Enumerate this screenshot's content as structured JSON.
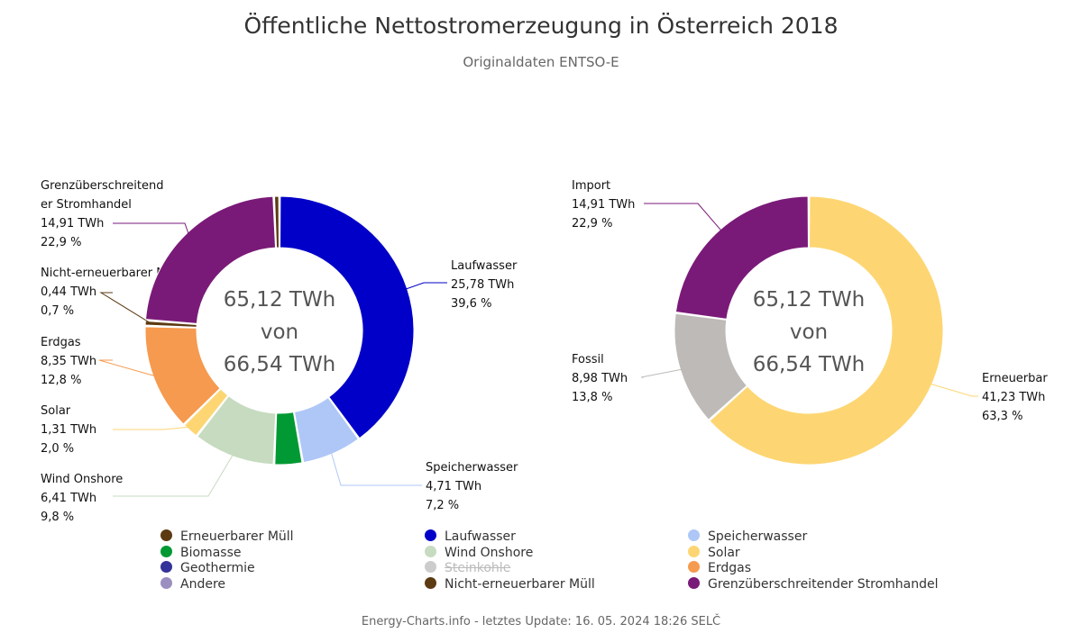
{
  "title": "Öffentliche Nettostromerzeugung in Österreich 2018",
  "subtitle": "Originaldaten ENTSO-E",
  "footer": "Energy-Charts.info - letztes Update: 16. 05. 2024 18:26 SELČ",
  "chart_data": [
    {
      "type": "pie",
      "title": "",
      "center_text": [
        "65,12 TWh",
        "von",
        "66,54 TWh"
      ],
      "unit": "TWh",
      "slices": [
        {
          "name": "Laufwasser",
          "value": 25.78,
          "percent": 39.6,
          "color": "#0000c8",
          "label_lines": [
            "Laufwasser",
            "25,78 TWh",
            "39,6 %"
          ]
        },
        {
          "name": "Speicherwasser",
          "value": 4.71,
          "percent": 7.2,
          "color": "#aec7f7",
          "label_lines": [
            "Speicherwasser",
            "4,71 TWh",
            "7,2 %"
          ]
        },
        {
          "name": "Biomasse",
          "value": 2.21,
          "percent": 3.4,
          "color": "#009933",
          "label_lines": []
        },
        {
          "name": "Wind Onshore",
          "value": 6.41,
          "percent": 9.8,
          "color": "#c6dbbf",
          "label_lines": [
            "Wind Onshore",
            "6,41 TWh",
            "9,8 %"
          ]
        },
        {
          "name": "Solar",
          "value": 1.31,
          "percent": 2.0,
          "color": "#fdd673",
          "label_lines": [
            "Solar",
            "1,31 TWh",
            "2,0 %"
          ]
        },
        {
          "name": "Erdgas",
          "value": 8.35,
          "percent": 12.8,
          "color": "#f59a4f",
          "label_lines": [
            "Erdgas",
            "8,35 TWh",
            "12,8 %"
          ]
        },
        {
          "name": "Nicht-erneuerbarer Müll",
          "value": 0.44,
          "percent": 0.7,
          "color": "#5c3a12",
          "label_lines": [
            "Nicht-erneuerbarer Müll",
            "0,44 TWh",
            "0,7 %"
          ]
        },
        {
          "name": "Grenzüberschreitender Stromhandel",
          "value": 14.91,
          "percent": 22.9,
          "color": "#7a1a78",
          "label_lines": [
            "Grenzüberschreitend",
            "er Stromhandel",
            "14,91 TWh",
            "22,9 %"
          ]
        },
        {
          "name": "Erneuerbarer Müll",
          "value": 0.44,
          "percent": 0.7,
          "color": "#5c3a12",
          "label_lines": []
        }
      ]
    },
    {
      "type": "pie",
      "title": "",
      "center_text": [
        "65,12 TWh",
        "von",
        "66,54 TWh"
      ],
      "unit": "TWh",
      "slices": [
        {
          "name": "Erneuerbar",
          "value": 41.23,
          "percent": 63.3,
          "color": "#fdd673",
          "label_lines": [
            "Erneuerbar",
            "41,23 TWh",
            "63,3 %"
          ]
        },
        {
          "name": "Fossil",
          "value": 8.98,
          "percent": 13.8,
          "color": "#bdbab7",
          "label_lines": [
            "Fossil",
            "8,98 TWh",
            "13,8 %"
          ]
        },
        {
          "name": "Import",
          "value": 14.91,
          "percent": 22.9,
          "color": "#7a1a78",
          "label_lines": [
            "Import",
            "14,91 TWh",
            "22,9 %"
          ]
        }
      ]
    }
  ],
  "legend": [
    {
      "label": "Erneuerbarer Müll",
      "color": "#5c3a12",
      "hidden": false
    },
    {
      "label": "Laufwasser",
      "color": "#0000c8",
      "hidden": false
    },
    {
      "label": "Speicherwasser",
      "color": "#aec7f7",
      "hidden": false
    },
    {
      "label": "Biomasse",
      "color": "#009933",
      "hidden": false
    },
    {
      "label": "Wind Onshore",
      "color": "#c6dbbf",
      "hidden": false
    },
    {
      "label": "Solar",
      "color": "#fdd673",
      "hidden": false
    },
    {
      "label": "Geothermie",
      "color": "#333399",
      "hidden": false
    },
    {
      "label": "Steinkohle",
      "color": "#cccccc",
      "hidden": true
    },
    {
      "label": "Erdgas",
      "color": "#f59a4f",
      "hidden": false
    },
    {
      "label": "Andere",
      "color": "#9b8fbf",
      "hidden": false
    },
    {
      "label": "Nicht-erneuerbarer Müll",
      "color": "#5c3a12",
      "hidden": false
    },
    {
      "label": "Grenzüberschreitender Stromhandel",
      "color": "#7a1a78",
      "hidden": false
    }
  ]
}
